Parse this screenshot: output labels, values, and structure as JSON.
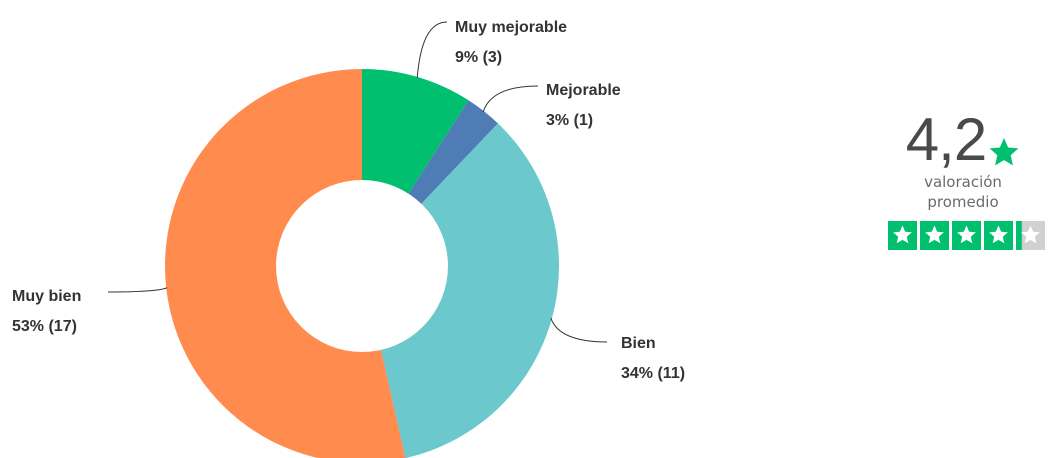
{
  "chart_data": {
    "type": "pie",
    "donut": true,
    "title": "",
    "slices": [
      {
        "name": "Muy mejorable",
        "percent": 9,
        "count": 3,
        "value_label": "9% (3)",
        "color": "#00bf6f"
      },
      {
        "name": "Mejorable",
        "percent": 3,
        "count": 1,
        "value_label": "3% (1)",
        "color": "#507cb6"
      },
      {
        "name": "Bien",
        "percent": 34,
        "count": 11,
        "value_label": "34% (11)",
        "color": "#6bc8cd"
      },
      {
        "name": "Muy bien",
        "percent": 53,
        "count": 17,
        "value_label": "53% (17)",
        "color": "#ff8b4f"
      }
    ]
  },
  "rating": {
    "value": "4,2",
    "caption_line1": "valoración",
    "caption_line2": "promedio",
    "score": 4.2,
    "max": 5,
    "star_color": "#00bf6f",
    "empty_color": "#d1d1d1"
  }
}
